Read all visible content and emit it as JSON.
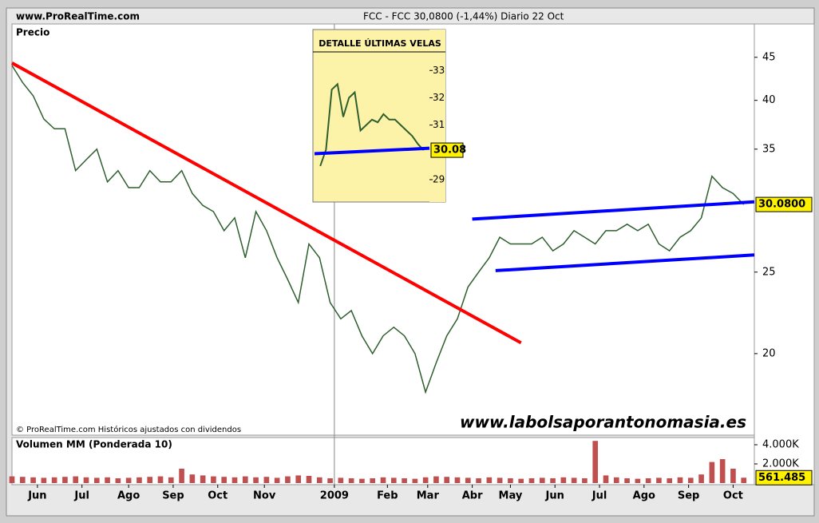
{
  "header": {
    "site": "www.ProRealTime.com",
    "quote": "FCC - FCC   30,0800 (-1,44%)   Diario  22 Oct"
  },
  "chart_data": [
    {
      "type": "line",
      "title": "Precio",
      "source": "© ProRealTime.com Históricos ajustados con dividendos",
      "watermark": "www.labolsaporantonomasia.es",
      "x": [
        0,
        5,
        10,
        15,
        20,
        25,
        30,
        35,
        40,
        45,
        50,
        55,
        60,
        65,
        70,
        75,
        80,
        85,
        90,
        95,
        100,
        105,
        110,
        115,
        120,
        125,
        130,
        135,
        140,
        145,
        150,
        155,
        160,
        165,
        170,
        175,
        180,
        185,
        190,
        195,
        200,
        205,
        210,
        215,
        220,
        225,
        230,
        235,
        240,
        245,
        250,
        255,
        260,
        265,
        270,
        275,
        280,
        285,
        290,
        295,
        300,
        305,
        310,
        315,
        320,
        325,
        330,
        335,
        340,
        345
      ],
      "values": [
        44,
        42,
        40.5,
        38,
        37,
        37,
        33,
        34,
        35,
        32,
        33,
        31.5,
        31.5,
        33,
        32,
        32,
        33,
        31,
        30,
        29.5,
        28,
        29,
        26,
        29.5,
        28,
        26,
        24.5,
        23,
        27,
        26,
        23,
        22,
        22.5,
        21,
        20,
        21,
        21.5,
        21,
        20,
        18,
        19.5,
        21,
        22,
        24,
        25,
        26,
        27.5,
        27,
        27,
        27,
        27.5,
        26.5,
        27,
        28,
        27.5,
        27,
        28,
        28,
        28.5,
        28,
        28.5,
        27,
        26.5,
        27.5,
        28,
        29,
        32.5,
        31.5,
        31,
        30.08
      ],
      "color": "#2f5f2f",
      "log_scale": true,
      "xlim": [
        0,
        350
      ],
      "ylim": [
        16,
        49.3
      ],
      "yticks": [
        20,
        25,
        35,
        40,
        45
      ],
      "xticks": [
        {
          "value": 12,
          "label": "Jun"
        },
        {
          "value": 33,
          "label": "Jul"
        },
        {
          "value": 55,
          "label": "Ago"
        },
        {
          "value": 76,
          "label": "Sep"
        },
        {
          "value": 97,
          "label": "Oct"
        },
        {
          "value": 119,
          "label": "Nov"
        },
        {
          "value": 152,
          "label": "2009"
        },
        {
          "value": 177,
          "label": "Feb"
        },
        {
          "value": 196,
          "label": "Mar"
        },
        {
          "value": 217,
          "label": "Abr"
        },
        {
          "value": 235,
          "label": "May"
        },
        {
          "value": 256,
          "label": "Jun"
        },
        {
          "value": 277,
          "label": "Jul"
        },
        {
          "value": 298,
          "label": "Ago"
        },
        {
          "value": 319,
          "label": "Sep"
        },
        {
          "value": 340,
          "label": "Oct"
        }
      ],
      "vlines": [
        152
      ],
      "trend_lines": [
        {
          "color": "#ff0000",
          "x": [
            0,
            240
          ],
          "values": [
            44.3,
            20.6
          ]
        },
        {
          "color": "#0000ff",
          "x": [
            217,
            350
          ],
          "values": [
            28.9,
            30.3
          ]
        },
        {
          "color": "#0000ff",
          "x": [
            228,
            350
          ],
          "values": [
            25.1,
            26.2
          ]
        }
      ],
      "last_value": {
        "value": 30.08,
        "label": "30.0800"
      }
    },
    {
      "type": "bar",
      "title": "Volumen MM (Ponderada 10)",
      "x": [
        0,
        5,
        10,
        15,
        20,
        25,
        30,
        35,
        40,
        45,
        50,
        55,
        60,
        65,
        70,
        75,
        80,
        85,
        90,
        95,
        100,
        105,
        110,
        115,
        120,
        125,
        130,
        135,
        140,
        145,
        150,
        155,
        160,
        165,
        170,
        175,
        180,
        185,
        190,
        195,
        200,
        205,
        210,
        215,
        220,
        225,
        230,
        235,
        240,
        245,
        250,
        255,
        260,
        265,
        270,
        275,
        280,
        285,
        290,
        295,
        300,
        305,
        310,
        315,
        320,
        325,
        330,
        335,
        340,
        345
      ],
      "values": [
        700000,
        650000,
        600000,
        550000,
        600000,
        650000,
        700000,
        600000,
        550000,
        600000,
        500000,
        550000,
        600000,
        650000,
        700000,
        600000,
        1500000,
        900000,
        800000,
        700000,
        650000,
        600000,
        700000,
        600000,
        650000,
        550000,
        700000,
        800000,
        750000,
        600000,
        500000,
        550000,
        500000,
        450000,
        500000,
        600000,
        550000,
        500000,
        450000,
        600000,
        700000,
        650000,
        600000,
        550000,
        500000,
        600000,
        550000,
        500000,
        450000,
        500000,
        550000,
        500000,
        600000,
        550000,
        500000,
        4400000,
        800000,
        600000,
        500000,
        450000,
        500000,
        550000,
        500000,
        600000,
        550000,
        900000,
        2200000,
        2500000,
        1500000,
        561485
      ],
      "color": "#c05050",
      "xlim": [
        0,
        350
      ],
      "ylim": [
        0,
        4750000
      ],
      "yticks": [
        {
          "value": 4000000,
          "label": "4.000K"
        },
        {
          "value": 2000000,
          "label": "2.000K"
        }
      ],
      "last_value": {
        "value": 561485,
        "label": "561.485"
      }
    },
    {
      "type": "line",
      "title": "DETALLE ÚLTIMAS VELAS",
      "x": [
        0,
        1,
        2,
        3,
        4,
        5,
        6,
        7,
        8,
        9,
        10,
        11,
        12,
        13,
        14,
        15,
        16,
        17,
        18
      ],
      "values": [
        29.5,
        30.1,
        32.3,
        32.5,
        31.3,
        32.0,
        32.2,
        30.8,
        31.0,
        31.2,
        31.1,
        31.4,
        31.2,
        31.2,
        31.0,
        30.8,
        30.6,
        30.3,
        30.08
      ],
      "color": "#2f5f2f",
      "xlim": [
        -1,
        19
      ],
      "ylim": [
        28.18,
        34.5
      ],
      "yticks": [
        33,
        32,
        31,
        29
      ],
      "trend_lines": [
        {
          "color": "#0000ff",
          "x": [
            -1,
            19
          ],
          "values": [
            29.95,
            30.15
          ]
        }
      ],
      "last_value": {
        "value": 30.08,
        "label": "30.08"
      }
    }
  ]
}
